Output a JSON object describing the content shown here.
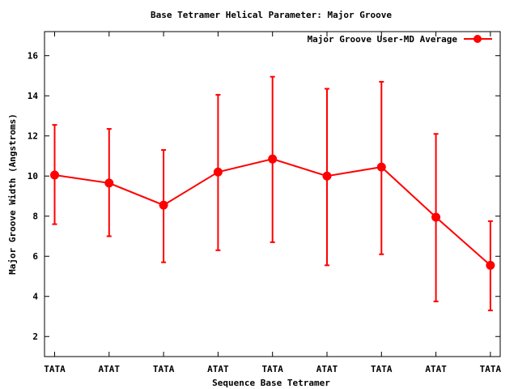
{
  "chart_data": {
    "type": "line",
    "title": "Base Tetramer Helical Parameter: Major Groove",
    "xlabel": "Sequence Base Tetramer",
    "ylabel": "Major Groove Width (Angstroms)",
    "categories": [
      "TATA",
      "ATAT",
      "TATA",
      "ATAT",
      "TATA",
      "ATAT",
      "TATA",
      "ATAT",
      "TATA"
    ],
    "ylim": [
      1,
      17.2
    ],
    "yticks": [
      2,
      4,
      6,
      8,
      10,
      12,
      14,
      16
    ],
    "grid": false,
    "legend_position": "top-right",
    "series": [
      {
        "name": "Major Groove User-MD Average",
        "color": "#ff0000",
        "values": [
          10.05,
          9.65,
          8.55,
          10.2,
          10.85,
          10.0,
          10.45,
          7.95,
          5.55
        ],
        "error_low": [
          7.6,
          7.0,
          5.7,
          6.3,
          6.7,
          5.55,
          6.1,
          3.75,
          3.3
        ],
        "error_high": [
          12.55,
          12.35,
          11.3,
          14.05,
          14.95,
          14.35,
          14.7,
          12.1,
          7.75
        ]
      }
    ]
  }
}
